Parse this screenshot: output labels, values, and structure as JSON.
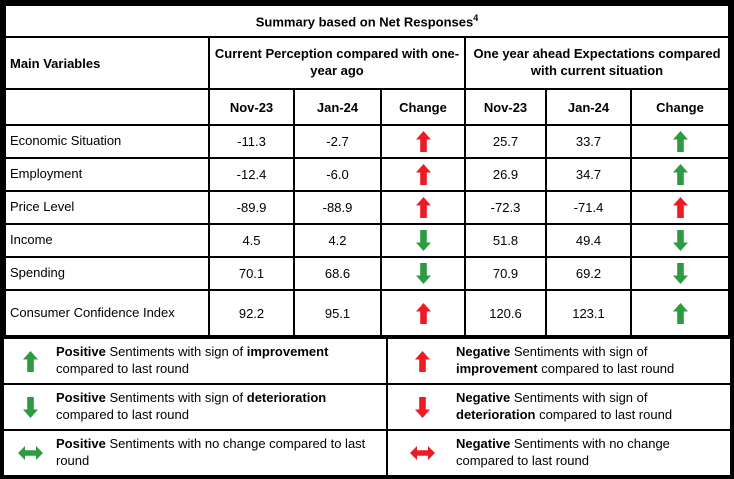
{
  "colors": {
    "red": "#ed1c24",
    "green": "#2d9b41",
    "border": "#000000",
    "page_bg": "#ffffff"
  },
  "title": {
    "text": "Summary based on Net Responses",
    "superscript": "4"
  },
  "table": {
    "main_variables_header": "Main Variables",
    "group_headers": [
      "Current Perception compared with one-year ago",
      "One year ahead Expectations compared with current situation"
    ],
    "subheaders": [
      "Nov-23",
      "Jan-24",
      "Change",
      "Nov-23",
      "Jan-24",
      "Change"
    ],
    "rows": [
      {
        "variable": "Economic Situation",
        "current_nov23": "-11.3",
        "current_jan24": "-2.7",
        "current_change_icon": "up-red",
        "ahead_nov23": "25.7",
        "ahead_jan24": "33.7",
        "ahead_change_icon": "up-green"
      },
      {
        "variable": "Employment",
        "current_nov23": "-12.4",
        "current_jan24": "-6.0",
        "current_change_icon": "up-red",
        "ahead_nov23": "26.9",
        "ahead_jan24": "34.7",
        "ahead_change_icon": "up-green"
      },
      {
        "variable": "Price Level",
        "current_nov23": "-89.9",
        "current_jan24": "-88.9",
        "current_change_icon": "up-red",
        "ahead_nov23": "-72.3",
        "ahead_jan24": "-71.4",
        "ahead_change_icon": "up-red"
      },
      {
        "variable": "Income",
        "current_nov23": "4.5",
        "current_jan24": "4.2",
        "current_change_icon": "down-green",
        "ahead_nov23": "51.8",
        "ahead_jan24": "49.4",
        "ahead_change_icon": "down-green"
      },
      {
        "variable": "Spending",
        "current_nov23": "70.1",
        "current_jan24": "68.6",
        "current_change_icon": "down-green",
        "ahead_nov23": "70.9",
        "ahead_jan24": "69.2",
        "ahead_change_icon": "down-green"
      },
      {
        "variable": "Consumer Confidence Index",
        "current_nov23": "92.2",
        "current_jan24": "95.1",
        "current_change_icon": "up-red",
        "ahead_nov23": "120.6",
        "ahead_jan24": "123.1",
        "ahead_change_icon": "up-green"
      }
    ]
  },
  "legend": {
    "items": [
      {
        "icon": "up-green",
        "segments": [
          {
            "text": "Positive",
            "bold": true
          },
          {
            "text": " Sentiments with sign of "
          },
          {
            "text": "improvement",
            "bold": true
          },
          {
            "text": " compared to last round"
          }
        ]
      },
      {
        "icon": "up-red",
        "segments": [
          {
            "text": "Negative",
            "bold": true
          },
          {
            "text": " Sentiments with sign of "
          },
          {
            "text": "improvement",
            "bold": true
          },
          {
            "text": " compared to last round"
          }
        ]
      },
      {
        "icon": "down-green",
        "segments": [
          {
            "text": "Positive",
            "bold": true
          },
          {
            "text": " Sentiments with sign of "
          },
          {
            "text": "deterioration",
            "bold": true
          },
          {
            "text": " compared to last round"
          }
        ]
      },
      {
        "icon": "down-red",
        "segments": [
          {
            "text": "Negative",
            "bold": true
          },
          {
            "text": " Sentiments with sign of "
          },
          {
            "text": "deterioration",
            "bold": true
          },
          {
            "text": " compared to last round"
          }
        ]
      },
      {
        "icon": "leftright-green",
        "segments": [
          {
            "text": "Positive",
            "bold": true
          },
          {
            "text": " Sentiments with no change compared to last round"
          }
        ]
      },
      {
        "icon": "leftright-red",
        "segments": [
          {
            "text": "Negative",
            "bold": true
          },
          {
            "text": " Sentiments with no change compared to last round"
          }
        ]
      }
    ]
  }
}
